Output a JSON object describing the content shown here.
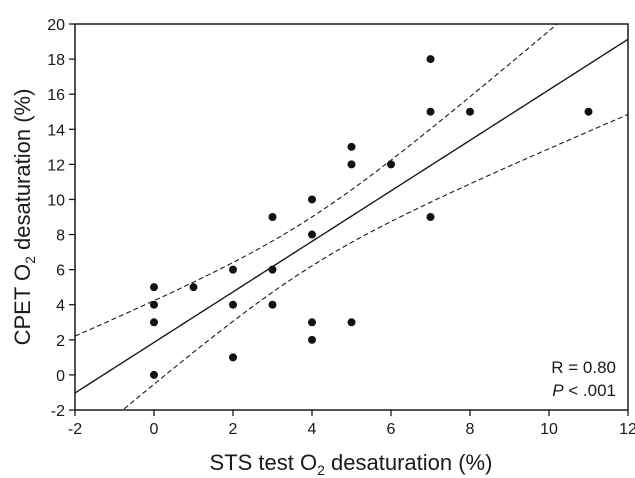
{
  "chart_data": {
    "type": "scatter",
    "xlabel_parts": [
      "STS test O",
      "2",
      " desaturation (%)"
    ],
    "ylabel_parts": [
      "CPET O",
      "2",
      " desaturation (%)"
    ],
    "xlim": [
      -2,
      12
    ],
    "ylim": [
      -2,
      20
    ],
    "xticks": [
      "-2",
      "0",
      "2",
      "4",
      "6",
      "8",
      "10",
      "12"
    ],
    "yticks": [
      "-2",
      "0",
      "2",
      "4",
      "6",
      "8",
      "10",
      "12",
      "14",
      "16",
      "18",
      "20"
    ],
    "grid": false,
    "points": [
      {
        "x": 0,
        "y": 5
      },
      {
        "x": 0,
        "y": 4
      },
      {
        "x": 0,
        "y": 3
      },
      {
        "x": 0,
        "y": 0
      },
      {
        "x": 1,
        "y": 5
      },
      {
        "x": 2,
        "y": 6
      },
      {
        "x": 2,
        "y": 4
      },
      {
        "x": 2,
        "y": 1
      },
      {
        "x": 3,
        "y": 9
      },
      {
        "x": 3,
        "y": 6
      },
      {
        "x": 3,
        "y": 4
      },
      {
        "x": 4,
        "y": 10
      },
      {
        "x": 4,
        "y": 8
      },
      {
        "x": 4,
        "y": 3
      },
      {
        "x": 4,
        "y": 2
      },
      {
        "x": 5,
        "y": 13
      },
      {
        "x": 5,
        "y": 12
      },
      {
        "x": 5,
        "y": 3
      },
      {
        "x": 6,
        "y": 12
      },
      {
        "x": 7,
        "y": 18
      },
      {
        "x": 7,
        "y": 15
      },
      {
        "x": 7,
        "y": 9
      },
      {
        "x": 8,
        "y": 15
      },
      {
        "x": 11,
        "y": 15
      }
    ],
    "regression_line": {
      "intercept": 1.85,
      "slope": 1.44,
      "style": "solid"
    },
    "confidence_band": {
      "style": "dashed"
    },
    "annotations": {
      "r_text": "R = 0.80",
      "p_symbol": "P",
      "p_text": " < .001"
    }
  }
}
